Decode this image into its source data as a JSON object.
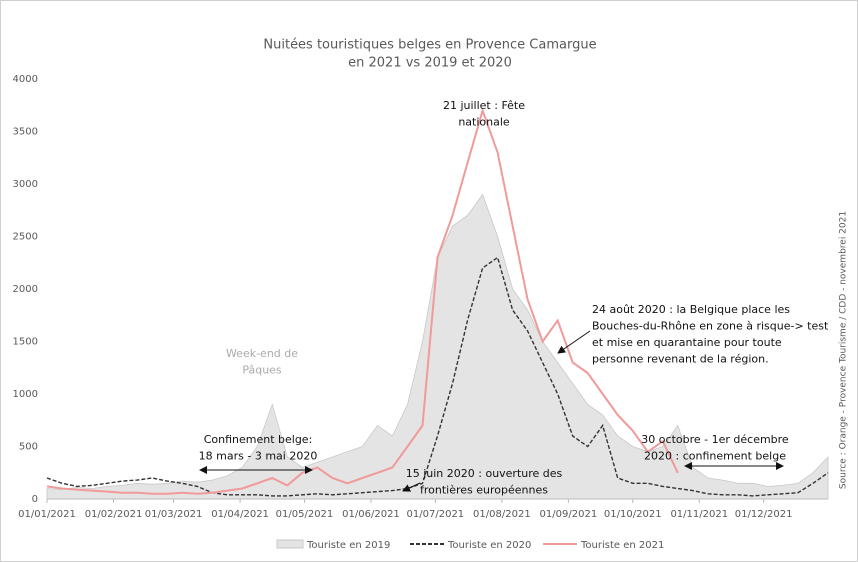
{
  "chart_data": {
    "type": "line",
    "title": [
      "Nuitées touristiques belges en Provence Camargue",
      "en 2021 vs 2019 et 2020"
    ],
    "source": "Source : Orange - Provence Tourisme  / CDD - novembrei 2021",
    "x": [
      "2021-01-01",
      "2021-01-08",
      "2021-01-15",
      "2021-01-22",
      "2021-01-29",
      "2021-02-05",
      "2021-02-12",
      "2021-02-19",
      "2021-02-26",
      "2021-03-05",
      "2021-03-12",
      "2021-03-19",
      "2021-03-26",
      "2021-04-02",
      "2021-04-09",
      "2021-04-16",
      "2021-04-23",
      "2021-04-30",
      "2021-05-07",
      "2021-05-14",
      "2021-05-21",
      "2021-05-28",
      "2021-06-04",
      "2021-06-11",
      "2021-06-18",
      "2021-06-25",
      "2021-07-02",
      "2021-07-09",
      "2021-07-16",
      "2021-07-23",
      "2021-07-30",
      "2021-08-06",
      "2021-08-13",
      "2021-08-20",
      "2021-08-27",
      "2021-09-03",
      "2021-09-10",
      "2021-09-17",
      "2021-09-24",
      "2021-10-01",
      "2021-10-08",
      "2021-10-15",
      "2021-10-22",
      "2021-10-29",
      "2021-11-05",
      "2021-11-12",
      "2021-11-19",
      "2021-11-26",
      "2021-12-03",
      "2021-12-10",
      "2021-12-17",
      "2021-12-24",
      "2021-12-31"
    ],
    "series": [
      {
        "name": "Touriste en 2019",
        "color": "#e4e4e4",
        "style": "area",
        "values": [
          100,
          90,
          110,
          100,
          120,
          130,
          150,
          140,
          150,
          170,
          160,
          180,
          220,
          300,
          500,
          900,
          400,
          300,
          350,
          400,
          450,
          500,
          700,
          600,
          900,
          1500,
          2300,
          2600,
          2700,
          2900,
          2500,
          2000,
          1800,
          1500,
          1300,
          1100,
          900,
          800,
          600,
          500,
          450,
          500,
          700,
          300,
          200,
          180,
          150,
          150,
          120,
          130,
          150,
          250,
          400
        ]
      },
      {
        "name": "Touriste en 2020",
        "color": "#333333",
        "style": "dashed",
        "values": [
          200,
          150,
          120,
          130,
          150,
          170,
          180,
          200,
          170,
          150,
          120,
          60,
          40,
          40,
          40,
          30,
          30,
          40,
          50,
          40,
          50,
          60,
          70,
          80,
          100,
          150,
          600,
          1100,
          1700,
          2200,
          2300,
          1800,
          1600,
          1300,
          1000,
          600,
          500,
          700,
          200,
          150,
          150,
          120,
          100,
          80,
          50,
          40,
          40,
          30,
          40,
          50,
          60,
          150,
          250
        ]
      },
      {
        "name": "Touriste en 2021",
        "color": "#f09a9a",
        "style": "solid",
        "values": [
          120,
          100,
          90,
          80,
          70,
          60,
          60,
          50,
          50,
          60,
          50,
          60,
          80,
          100,
          150,
          200,
          130,
          250,
          300,
          200,
          150,
          200,
          250,
          300,
          500,
          700,
          2300,
          2700,
          3200,
          3700,
          3300,
          2600,
          1900,
          1500,
          1700,
          1300,
          1200,
          1000,
          800,
          650,
          450,
          550,
          250,
          null,
          null,
          null,
          null,
          null,
          null,
          null,
          null,
          null,
          null
        ]
      }
    ],
    "xlim": [
      "2021-01-01",
      "2021-12-31"
    ],
    "xticks": [
      {
        "value": "2021-01-01",
        "label": "01/01/2021"
      },
      {
        "value": "2021-02-01",
        "label": "01/02/2021"
      },
      {
        "value": "2021-03-01",
        "label": "01/03/2021"
      },
      {
        "value": "2021-04-01",
        "label": "01/04/2021"
      },
      {
        "value": "2021-05-01",
        "label": "01/05/2021"
      },
      {
        "value": "2021-06-01",
        "label": "01/06/2021"
      },
      {
        "value": "2021-07-01",
        "label": "01/07/2021"
      },
      {
        "value": "2021-08-01",
        "label": "01/08/2021"
      },
      {
        "value": "2021-09-01",
        "label": "01/09/2021"
      },
      {
        "value": "2021-10-01",
        "label": "01/10/2021"
      },
      {
        "value": "2021-11-01",
        "label": "01/11/2021"
      },
      {
        "value": "2021-12-01",
        "label": "01/12/2021"
      }
    ],
    "ylim": [
      0,
      4000
    ],
    "yticks": [
      0,
      500,
      1000,
      1500,
      2000,
      2500,
      3000,
      3500,
      4000
    ],
    "grid": false,
    "legend": "bottom",
    "annotations": [
      {
        "lines": [
          "21 juillet : Fête",
          "nationale"
        ]
      },
      {
        "lines": [
          "24 août 2020 : la Belgique place les",
          "Bouches-du-Rhône en zone à risque-> test",
          "et  mise en quarantaine pour toute",
          "personne revenant de la région."
        ]
      },
      {
        "lines": [
          "Week-end de",
          "Pâques"
        ]
      },
      {
        "lines": [
          "Confinement belge:",
          "18 mars - 3 mai 2020"
        ]
      },
      {
        "lines": [
          "15 juin 2020 : ouverture des",
          "frontières européennes"
        ]
      },
      {
        "lines": [
          "30 octobre - 1er décembre",
          "2020 : confinement belge"
        ]
      }
    ]
  }
}
